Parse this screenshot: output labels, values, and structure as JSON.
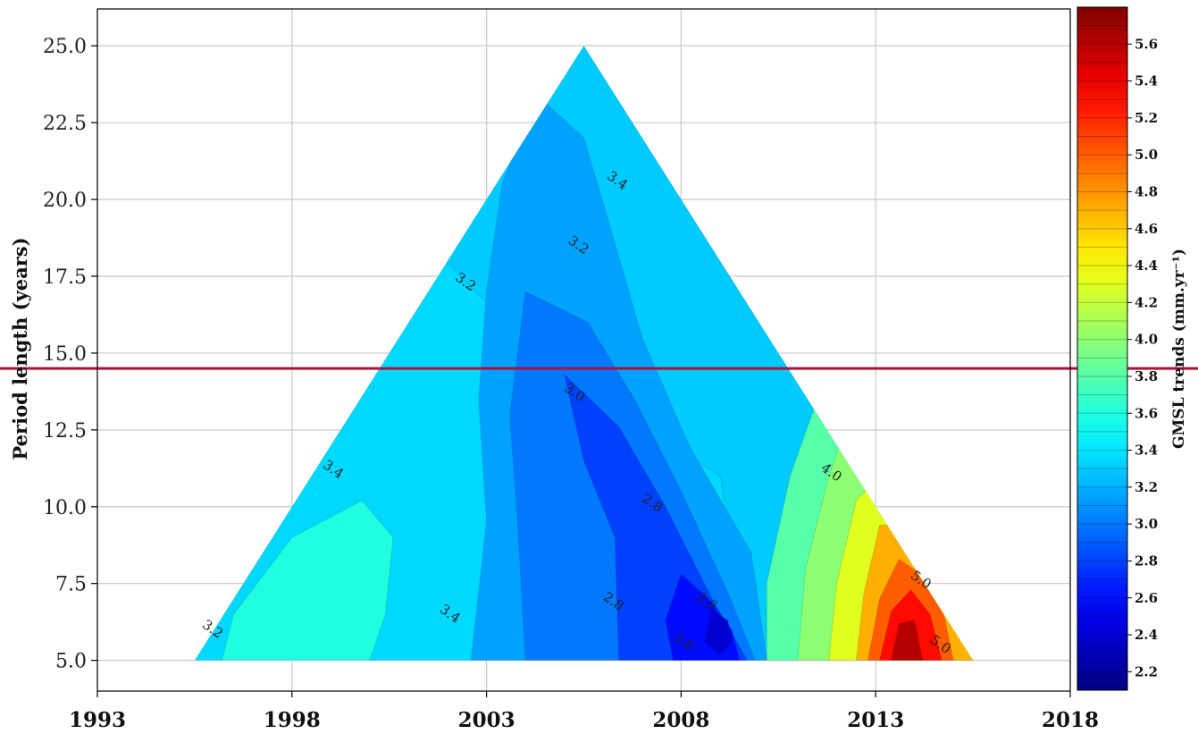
{
  "chart_data": {
    "type": "heatmap",
    "ylabel": "Period length (years)",
    "colorbar_label": "GMSL trends (mm.yr⁻¹)",
    "x_ticks": [
      "1993",
      "1998",
      "2003",
      "2008",
      "2013",
      "2018"
    ],
    "y_ticks": [
      "5.0",
      "7.5",
      "10.0",
      "12.5",
      "15.0",
      "17.5",
      "20.0",
      "22.5",
      "25.0"
    ],
    "xlim": [
      1993,
      2018
    ],
    "ylim": [
      4.0,
      26.2
    ],
    "grid": true,
    "colorbar_ticks": [
      "2.2",
      "2.4",
      "2.6",
      "2.8",
      "3.0",
      "3.2",
      "3.4",
      "3.6",
      "3.8",
      "4.0",
      "4.2",
      "4.4",
      "4.6",
      "4.8",
      "5.0",
      "5.2",
      "5.4",
      "5.6"
    ],
    "colorbar_range": [
      2.1,
      5.8
    ],
    "triangle": {
      "left": [
        1995.5,
        5.0
      ],
      "apex": [
        2005.5,
        25.0
      ],
      "right": [
        2015.5,
        5.0
      ]
    },
    "horizontal_line": {
      "y": 14.5,
      "color": "#b0103a"
    },
    "contour_labels": [
      {
        "text": "3.4",
        "x": 2006.3,
        "y": 20.5
      },
      {
        "text": "3.2",
        "x": 2005.3,
        "y": 18.4
      },
      {
        "text": "3.2",
        "x": 2002.4,
        "y": 17.2
      },
      {
        "text": "3.0",
        "x": 2005.2,
        "y": 13.6
      },
      {
        "text": "4.0",
        "x": 2011.8,
        "y": 11.0
      },
      {
        "text": "3.4",
        "x": 1999.0,
        "y": 11.1
      },
      {
        "text": "2.8",
        "x": 2007.2,
        "y": 10.0
      },
      {
        "text": "5.0",
        "x": 2014.1,
        "y": 7.5
      },
      {
        "text": "2.6",
        "x": 2008.6,
        "y": 6.8
      },
      {
        "text": "2.8",
        "x": 2006.2,
        "y": 6.8
      },
      {
        "text": "3.4",
        "x": 2002.0,
        "y": 6.4
      },
      {
        "text": "3.0",
        "x": 2008.0,
        "y": 5.5
      },
      {
        "text": "5.0",
        "x": 2014.6,
        "y": 5.4
      },
      {
        "text": "3.2",
        "x": 1995.9,
        "y": 5.9
      }
    ],
    "field_regions": [
      {
        "name": "main-field",
        "value": 3.35
      },
      {
        "name": "upper-band",
        "value": 3.3
      },
      {
        "name": "inner-low-3-2",
        "value": 3.15
      },
      {
        "name": "inner-low-3-0",
        "value": 3.0
      },
      {
        "name": "core-low-2-8",
        "value": 2.8
      },
      {
        "name": "core-low-2-6",
        "value": 2.6
      },
      {
        "name": "core-low-2-4",
        "value": 2.4
      },
      {
        "name": "left-high",
        "value": 3.6
      },
      {
        "name": "right-3-8",
        "value": 3.8
      },
      {
        "name": "right-4-0",
        "value": 4.0
      },
      {
        "name": "right-4-3",
        "value": 4.3
      },
      {
        "name": "right-4-7",
        "value": 4.7
      },
      {
        "name": "right-5-0",
        "value": 5.0
      },
      {
        "name": "right-5-3",
        "value": 5.3
      },
      {
        "name": "right-5-6",
        "value": 5.6
      }
    ]
  }
}
